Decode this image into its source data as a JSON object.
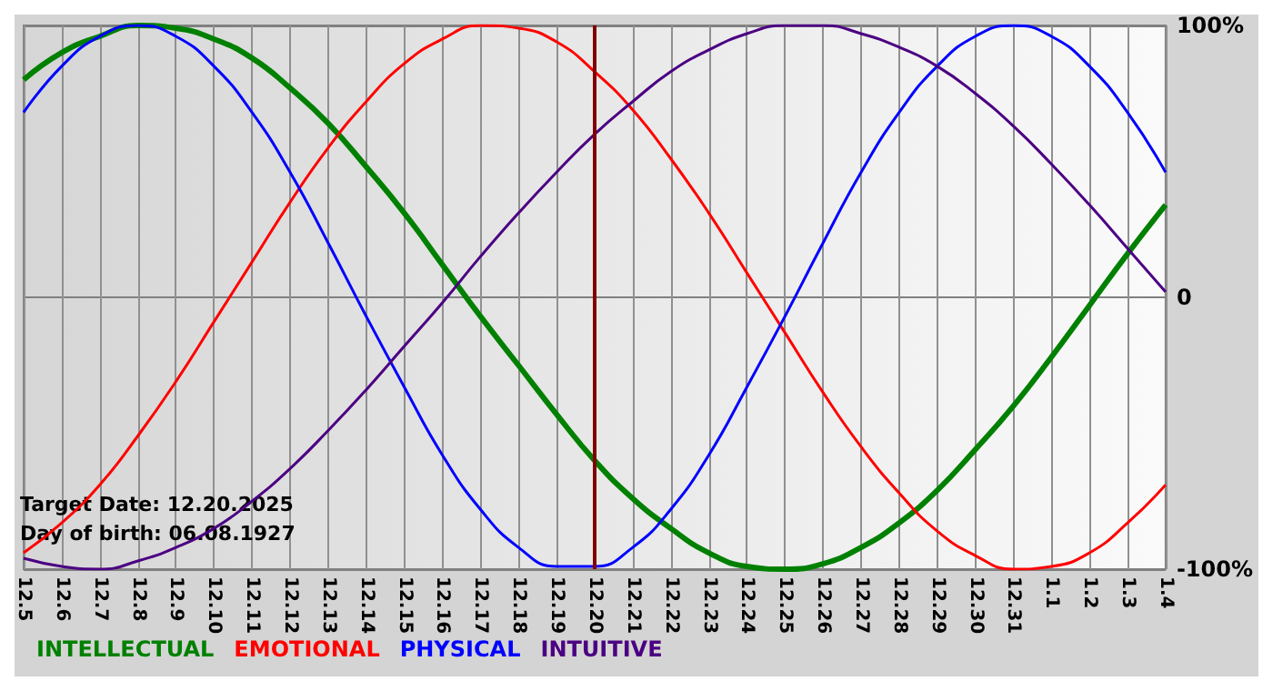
{
  "chart_data": {
    "type": "line",
    "categories": [
      "12.5",
      "12.6",
      "12.7",
      "12.8",
      "12.9",
      "12.10",
      "12.11",
      "12.12",
      "12.13",
      "12.14",
      "12.15",
      "12.16",
      "12.17",
      "12.18",
      "12.19",
      "12.20",
      "12.21",
      "12.22",
      "12.23",
      "12.24",
      "12.25",
      "12.26",
      "12.27",
      "12.28",
      "12.29",
      "12.30",
      "12.31",
      "1.1",
      "1.2",
      "1.3",
      "1.4"
    ],
    "series": [
      {
        "name": "INTELLECTUAL",
        "color": "#008000",
        "values": [
          80,
          90,
          96,
          100,
          99,
          95,
          88,
          77,
          64,
          48,
          31,
          12,
          -7,
          -25,
          -43,
          -60,
          -74,
          -85,
          -94,
          -99,
          -100,
          -98,
          -92,
          -83,
          -71,
          -56,
          -40,
          -22,
          -3,
          16,
          34
        ]
      },
      {
        "name": "EMOTIONAL",
        "color": "#ff0000",
        "values": [
          -94,
          -83,
          -69,
          -51,
          -31,
          -9,
          13,
          35,
          55,
          72,
          86,
          95,
          100,
          99,
          94,
          83,
          69,
          51,
          31,
          9,
          -13,
          -35,
          -55,
          -72,
          -86,
          -95,
          -100,
          -99,
          -94,
          -83,
          -69
        ]
      },
      {
        "name": "PHYSICAL",
        "color": "#0000ff",
        "values": [
          68,
          85,
          96,
          100,
          96,
          85,
          68,
          46,
          20,
          -7,
          -33,
          -58,
          -78,
          -92,
          -99,
          -99,
          -92,
          -78,
          -58,
          -33,
          -7,
          20,
          46,
          68,
          85,
          96,
          100,
          96,
          85,
          68,
          46
        ]
      },
      {
        "name": "INTUITIVE",
        "color": "#4b0082",
        "values": [
          -96,
          -99,
          -100,
          -97,
          -92,
          -85,
          -75,
          -63,
          -49,
          -34,
          -18,
          -2,
          15,
          31,
          46,
          60,
          72,
          83,
          91,
          97,
          100,
          100,
          97,
          92,
          85,
          75,
          63,
          49,
          34,
          18,
          2
        ]
      }
    ],
    "ylim": [
      -100,
      100
    ],
    "yticks": [
      {
        "value": -100,
        "label": "-100%"
      },
      0,
      {
        "value": 100,
        "label": "100%"
      }
    ],
    "ref_lines": [
      {
        "axis": "x",
        "value": "12.20",
        "color": "#800000"
      }
    ],
    "annotations": [
      "Target Date: 12.20.2025",
      "Day of birth: 06.08.1927"
    ],
    "grid": true,
    "legend": "bottom left",
    "marker": "none",
    "line_style": "solid"
  }
}
